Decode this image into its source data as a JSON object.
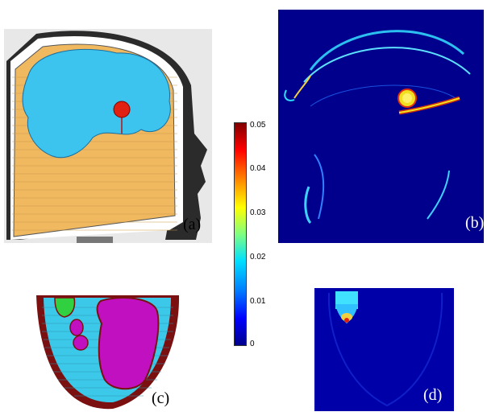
{
  "panels": {
    "a": {
      "label": "(a)"
    },
    "b": {
      "label": "(b)"
    },
    "c": {
      "label": "(c)"
    },
    "d": {
      "label": "(d)"
    }
  },
  "colorbar": {
    "ticks": [
      "0.05",
      "0.04",
      "0.03",
      "0.02",
      "0.01",
      "0"
    ]
  },
  "colors": {
    "head_skin": "#f0b960",
    "brain": "#3cc4ee",
    "lesion": "#e02010",
    "map_bg": "#00008c",
    "skull_outline": "#1a1a1a"
  }
}
